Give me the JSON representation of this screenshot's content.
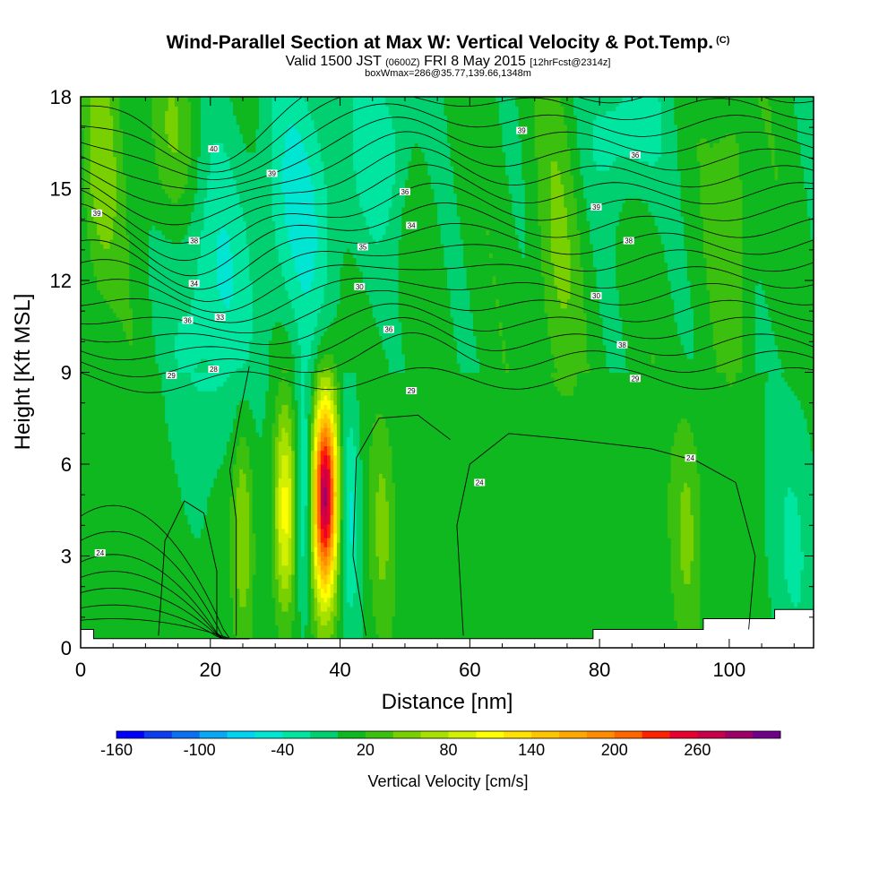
{
  "header": {
    "title": "Wind-Parallel Section at Max W: Vertical Velocity & Pot.Temp.",
    "title_units": "(C)",
    "sub_valid": "Valid 1500 JST",
    "sub_utc": "(0600Z)",
    "sub_date": "FRI 8 May 2015",
    "sub_fcst": "[12hrFcst@2314z]",
    "sub_box": "boxWmax=286@35.77,139.66,1348m"
  },
  "chart_data": {
    "type": "heatmap",
    "xlabel": "Distance [nm]",
    "ylabel": "Height [Kft MSL]",
    "xlim": [
      0,
      113
    ],
    "ylim": [
      0,
      18
    ],
    "x_ticks": [
      0,
      20,
      40,
      60,
      80,
      100
    ],
    "y_ticks": [
      0,
      3,
      6,
      9,
      12,
      15,
      18
    ],
    "colorbar": {
      "label": "Vertical Velocity [cm/s]",
      "tick_labels": [
        "-160",
        "-100",
        "-40",
        "20",
        "80",
        "140",
        "200",
        "260"
      ],
      "tick_values": [
        -160,
        -100,
        -40,
        20,
        80,
        140,
        200,
        260
      ],
      "levels": [
        -160,
        -140,
        -120,
        -100,
        -80,
        -60,
        -40,
        -20,
        0,
        20,
        40,
        60,
        80,
        100,
        120,
        140,
        160,
        180,
        200,
        220,
        240,
        260,
        280,
        300
      ],
      "colors": [
        "#0000ff",
        "#0c3cf0",
        "#0a70f0",
        "#08a8f4",
        "#00d2f2",
        "#00e6d2",
        "#00e6a0",
        "#00d070",
        "#10b820",
        "#3cc010",
        "#78d000",
        "#a8e000",
        "#d2f000",
        "#ffff00",
        "#ffe200",
        "#ffc400",
        "#ffa800",
        "#ff8c00",
        "#ff6600",
        "#ff2200",
        "#e8002e",
        "#c8004c",
        "#9c0068",
        "#700088"
      ]
    },
    "max_w": {
      "value": 286,
      "units": "cm/s",
      "lat": 35.77,
      "lon": 139.66,
      "height_m": 1348
    },
    "w_maxima": [
      {
        "x": 37.7,
        "y": 5.0,
        "w": 286
      },
      {
        "x": 31.5,
        "y": 4.5,
        "w": 110
      },
      {
        "x": 25.0,
        "y": 4.0,
        "w": 60
      },
      {
        "x": 46.5,
        "y": 4.0,
        "w": 45
      },
      {
        "x": 93.5,
        "y": 4.0,
        "w": 45
      }
    ],
    "theta_contour_labels": [
      {
        "x": 2.5,
        "y": 14.2,
        "text": "39"
      },
      {
        "x": 20.5,
        "y": 16.3,
        "text": "40"
      },
      {
        "x": 29.5,
        "y": 15.5,
        "text": "39"
      },
      {
        "x": 17.5,
        "y": 13.3,
        "text": "38"
      },
      {
        "x": 17.5,
        "y": 11.9,
        "text": "34"
      },
      {
        "x": 16.5,
        "y": 10.7,
        "text": "36"
      },
      {
        "x": 21.5,
        "y": 10.8,
        "text": "33"
      },
      {
        "x": 14.0,
        "y": 8.9,
        "text": "29"
      },
      {
        "x": 20.5,
        "y": 9.1,
        "text": "28"
      },
      {
        "x": 50.0,
        "y": 14.9,
        "text": "36"
      },
      {
        "x": 51.0,
        "y": 13.8,
        "text": "34"
      },
      {
        "x": 43.5,
        "y": 13.1,
        "text": "35"
      },
      {
        "x": 43.0,
        "y": 11.8,
        "text": "30"
      },
      {
        "x": 47.5,
        "y": 10.4,
        "text": "36"
      },
      {
        "x": 51.0,
        "y": 8.4,
        "text": "29"
      },
      {
        "x": 68.0,
        "y": 16.9,
        "text": "39"
      },
      {
        "x": 85.5,
        "y": 16.1,
        "text": "36"
      },
      {
        "x": 79.5,
        "y": 14.4,
        "text": "39"
      },
      {
        "x": 84.5,
        "y": 13.3,
        "text": "38"
      },
      {
        "x": 79.5,
        "y": 11.5,
        "text": "30"
      },
      {
        "x": 83.5,
        "y": 9.9,
        "text": "38"
      },
      {
        "x": 85.5,
        "y": 8.8,
        "text": "29"
      },
      {
        "x": 94.0,
        "y": 6.2,
        "text": "24"
      },
      {
        "x": 61.5,
        "y": 5.4,
        "text": "24"
      },
      {
        "x": 3.0,
        "y": 3.1,
        "text": "24"
      }
    ],
    "terrain_heights": [
      [
        0,
        0.6
      ],
      [
        2,
        0.6
      ],
      [
        2,
        0.3
      ],
      [
        79,
        0.3
      ],
      [
        79,
        0.6
      ],
      [
        96,
        0.6
      ],
      [
        96,
        0.95
      ],
      [
        107,
        0.95
      ],
      [
        107,
        1.25
      ],
      [
        113,
        1.25
      ]
    ]
  }
}
